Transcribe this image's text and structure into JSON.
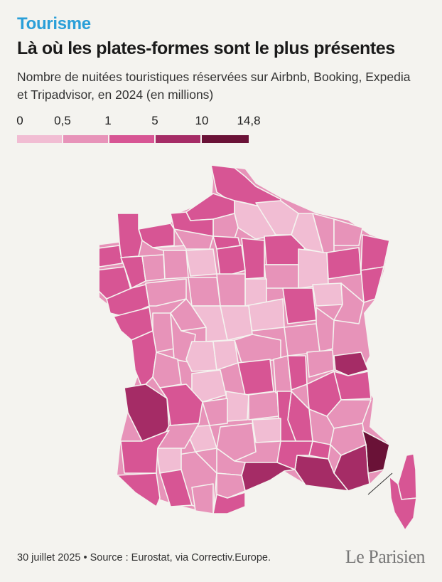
{
  "header": {
    "kicker": "Tourisme",
    "title": "Là où les plates-formes sont le plus présentes",
    "subtitle": "Nombre de nuitées touristiques réservées sur Airbnb, Booking, Expedia et Tripadvisor, en 2024 (en millions)"
  },
  "legend": {
    "breaks": [
      "0",
      "0,5",
      "1",
      "5",
      "10",
      "14,8"
    ],
    "colors": [
      "#f1bdd3",
      "#e793b9",
      "#d75594",
      "#a52c66",
      "#6a1237"
    ]
  },
  "footer": {
    "source": "30 juillet 2025 • Source : Eurostat, via Correctiv.Europe.",
    "logo": "Le Parisien"
  }
}
